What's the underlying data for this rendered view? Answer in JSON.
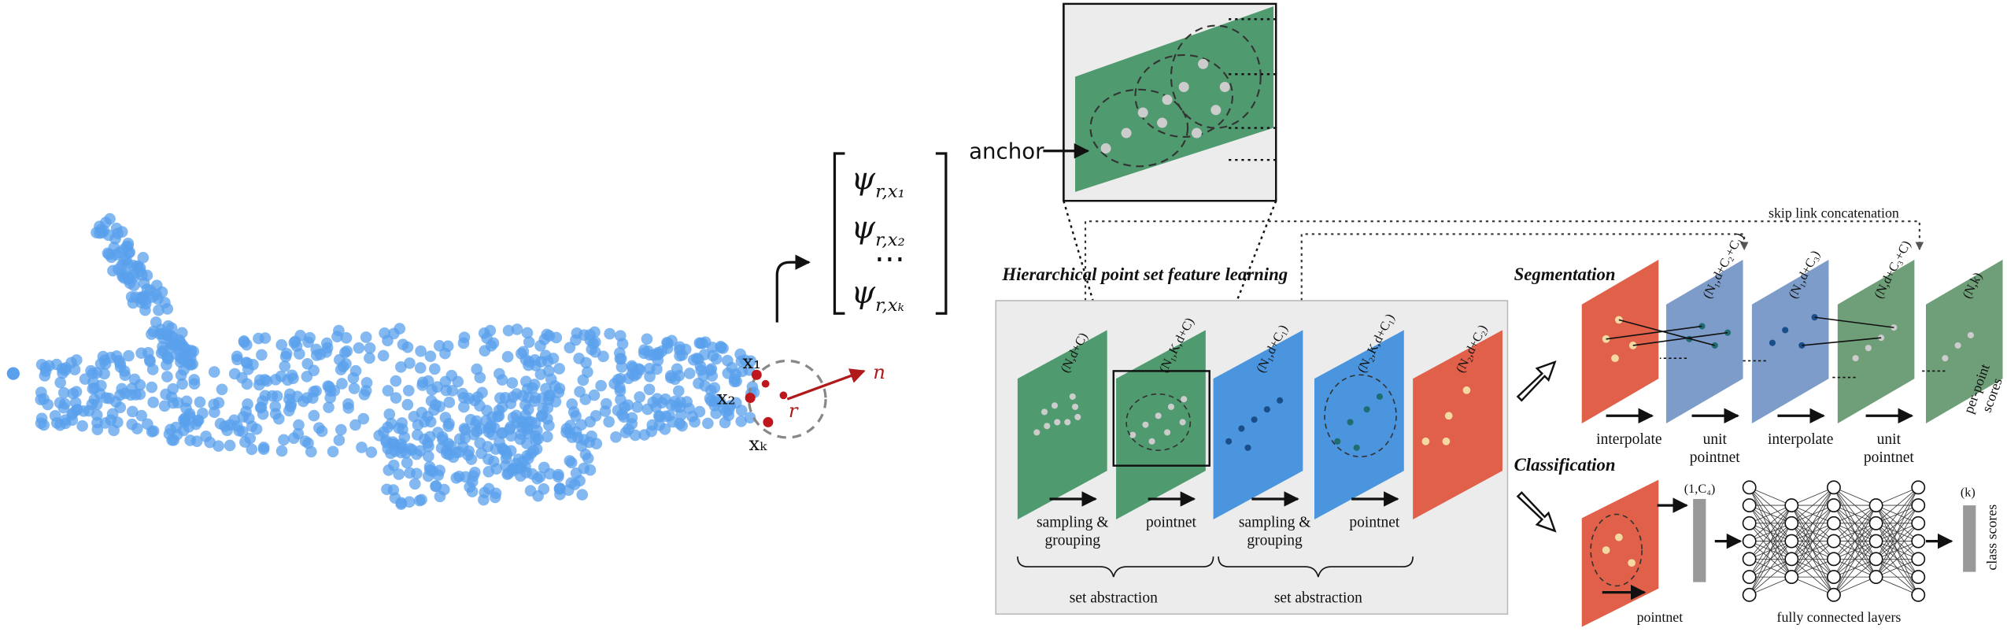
{
  "left": {
    "points": {
      "x1": "x₁",
      "x2": "x₂",
      "xk": "xₖ",
      "r": "r",
      "n": "n"
    },
    "matrix": [
      {
        "sym": "ψ",
        "sub": "r,x₁"
      },
      {
        "sym": "ψ",
        "sub": "r,x₂"
      },
      {
        "dots": "⋯"
      },
      {
        "sym": "ψ",
        "sub": "r,xₖ"
      }
    ],
    "anchor": "anchor"
  },
  "hierarchical": {
    "title": "Hierarchical point set feature learning",
    "planes": [
      "(N,d+C)",
      "(N₁,K,d+C)",
      "(N₁,d+C₁)",
      "(N₂,K,d+C₁)",
      "(N₂,d+C₂)"
    ],
    "steps": [
      {
        "line1": "sampling &",
        "line2": "grouping"
      },
      {
        "line1": "pointnet"
      },
      {
        "line1": "sampling &",
        "line2": "grouping"
      },
      {
        "line1": "pointnet"
      }
    ],
    "groups": [
      "set abstraction",
      "set abstraction"
    ]
  },
  "skip": "skip link concatenation",
  "segmentation": {
    "title": "Segmentation",
    "planes": [
      "(N₁,d+C₂+C₁)",
      "(N₁,d+C₃)",
      "(N,d+C₃+C)",
      "(N,k)"
    ],
    "steps": [
      {
        "line1": "interpolate"
      },
      {
        "line1": "unit",
        "line2": "pointnet"
      },
      {
        "line1": "interpolate"
      },
      {
        "line1": "unit",
        "line2": "pointnet"
      }
    ],
    "output": {
      "line1": "per-point",
      "line2": "scores"
    }
  },
  "classification": {
    "title": "Classification",
    "feature": "(1,C₄)",
    "step": "pointnet",
    "fc": "fully connected layers",
    "out": "(k)",
    "scores": "class scores"
  }
}
